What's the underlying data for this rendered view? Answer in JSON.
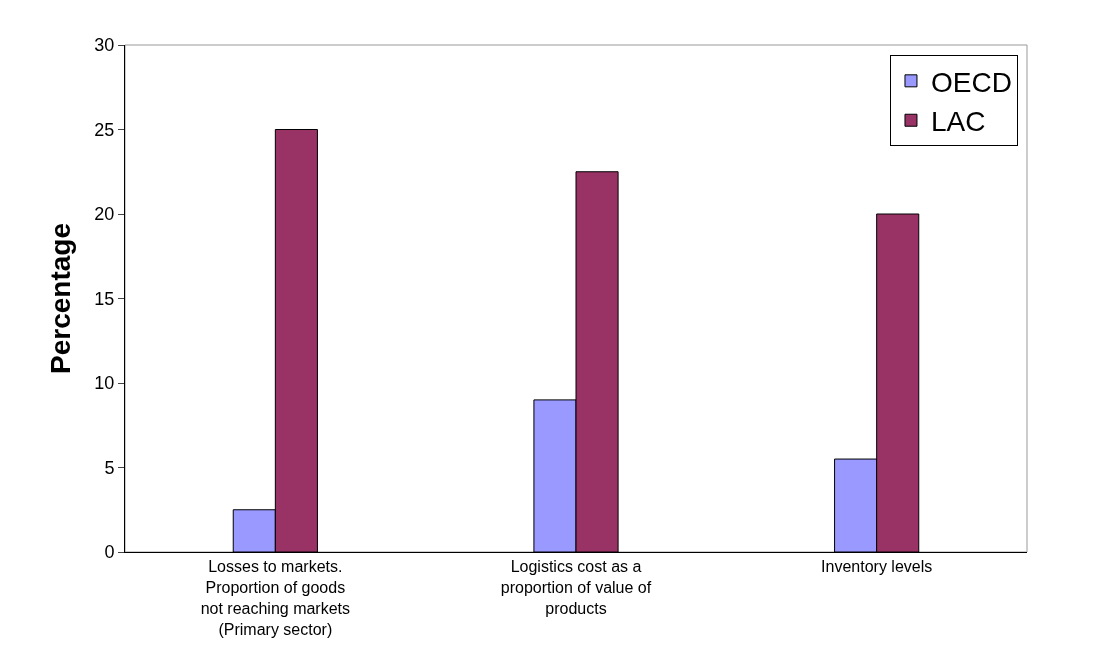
{
  "chart_data": {
    "type": "bar",
    "ylabel": "Percentage",
    "categories": [
      "Losses to markets. Proportion of goods not reaching markets (Primary sector)",
      "Logistics cost as a proportion of value of products",
      "Inventory levels"
    ],
    "series": [
      {
        "name": "OECD",
        "color": "#9999ff",
        "values": [
          2.5,
          9,
          5.5
        ]
      },
      {
        "name": "LAC",
        "color": "#993366",
        "values": [
          25,
          22.5,
          20
        ]
      }
    ],
    "ylim": [
      0,
      30
    ],
    "yticks": [
      0,
      5,
      10,
      15,
      20,
      25,
      30
    ],
    "grid": false,
    "legend": "top right"
  }
}
